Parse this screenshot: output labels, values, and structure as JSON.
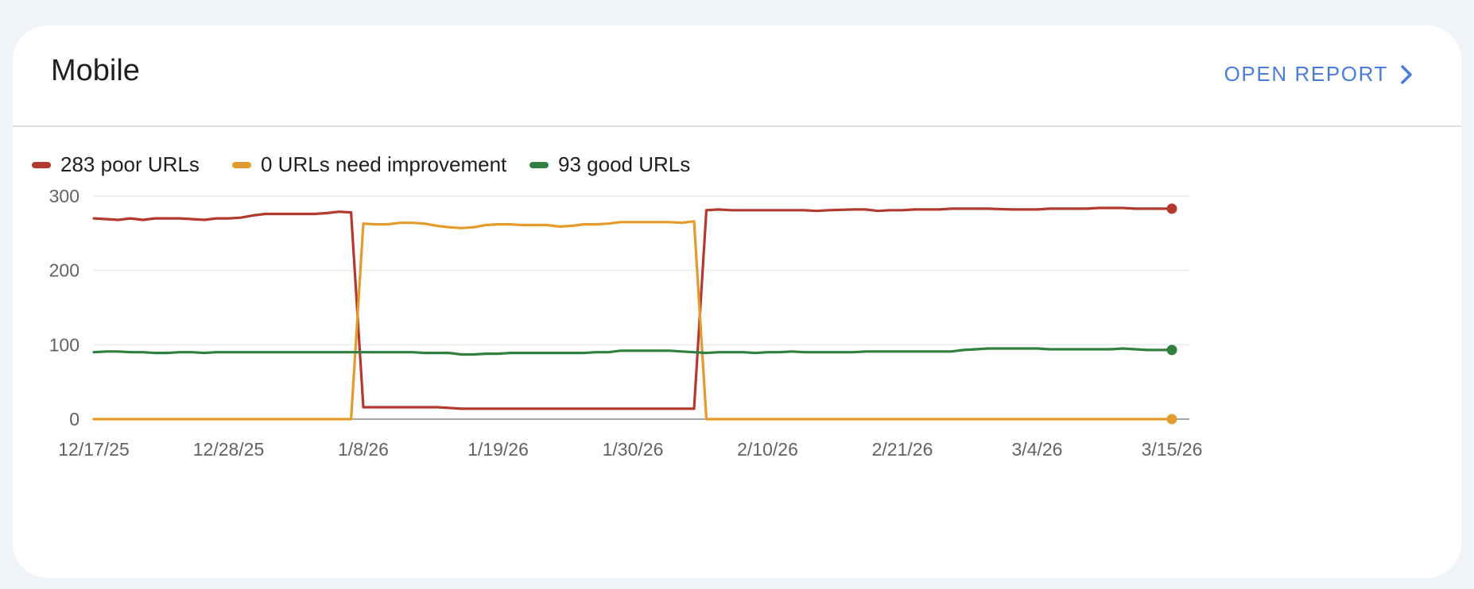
{
  "card": {
    "title": "Mobile",
    "open_report_label": "OPEN REPORT",
    "open_report_icon": "chevron-right-icon",
    "accent_color": "#4a7ddb"
  },
  "legend": [
    {
      "label": "283 poor URLs",
      "color": "#b3392e"
    },
    {
      "label": "0 URLs need improvement",
      "color": "#e59a2c"
    },
    {
      "label": "93 good URLs",
      "color": "#31803f"
    }
  ],
  "chart_data": {
    "type": "line",
    "ylim": [
      0,
      300
    ],
    "yticks": [
      0,
      100,
      200,
      300
    ],
    "xlim": [
      "12/17/25",
      "3/15/26"
    ],
    "xticks": [
      "12/17/25",
      "12/28/25",
      "1/8/26",
      "1/19/26",
      "1/30/26",
      "2/10/26",
      "2/21/26",
      "3/4/26",
      "3/15/26"
    ],
    "grid": true,
    "legend_position": "top-left",
    "series": [
      {
        "name": "283 poor URLs",
        "color": "#b3392e",
        "points": [
          [
            "12/17/25",
            270
          ],
          [
            "12/18/25",
            269
          ],
          [
            "12/19/25",
            268
          ],
          [
            "12/20/25",
            270
          ],
          [
            "12/21/25",
            268
          ],
          [
            "12/22/25",
            270
          ],
          [
            "12/23/25",
            270
          ],
          [
            "12/24/25",
            270
          ],
          [
            "12/25/25",
            269
          ],
          [
            "12/26/25",
            268
          ],
          [
            "12/27/25",
            270
          ],
          [
            "12/28/25",
            270
          ],
          [
            "12/29/25",
            271
          ],
          [
            "12/30/25",
            274
          ],
          [
            "12/31/25",
            276
          ],
          [
            "1/1/26",
            276
          ],
          [
            "1/2/26",
            276
          ],
          [
            "1/3/26",
            276
          ],
          [
            "1/4/26",
            276
          ],
          [
            "1/5/26",
            277
          ],
          [
            "1/6/26",
            279
          ],
          [
            "1/7/26",
            278
          ],
          [
            "1/8/26",
            16
          ],
          [
            "1/9/26",
            16
          ],
          [
            "1/10/26",
            16
          ],
          [
            "1/14/26",
            16
          ],
          [
            "1/15/26",
            15
          ],
          [
            "1/16/26",
            14
          ],
          [
            "1/20/26",
            14
          ],
          [
            "1/25/26",
            14
          ],
          [
            "2/1/26",
            14
          ],
          [
            "2/4/26",
            14
          ],
          [
            "2/5/26",
            281
          ],
          [
            "2/6/26",
            282
          ],
          [
            "2/7/26",
            281
          ],
          [
            "2/10/26",
            281
          ],
          [
            "2/13/26",
            281
          ],
          [
            "2/14/26",
            280
          ],
          [
            "2/15/26",
            281
          ],
          [
            "2/17/26",
            282
          ],
          [
            "2/18/26",
            282
          ],
          [
            "2/19/26",
            280
          ],
          [
            "2/20/26",
            281
          ],
          [
            "2/21/26",
            281
          ],
          [
            "2/22/26",
            282
          ],
          [
            "2/24/26",
            282
          ],
          [
            "2/25/26",
            283
          ],
          [
            "2/28/26",
            283
          ],
          [
            "3/2/26",
            282
          ],
          [
            "3/4/26",
            282
          ],
          [
            "3/5/26",
            283
          ],
          [
            "3/8/26",
            283
          ],
          [
            "3/9/26",
            284
          ],
          [
            "3/11/26",
            284
          ],
          [
            "3/12/26",
            283
          ],
          [
            "3/15/26",
            283
          ]
        ]
      },
      {
        "name": "0 URLs need improvement",
        "color": "#e59a2c",
        "points": [
          [
            "12/17/25",
            0
          ],
          [
            "1/7/26",
            0
          ],
          [
            "1/8/26",
            263
          ],
          [
            "1/9/26",
            262
          ],
          [
            "1/10/26",
            262
          ],
          [
            "1/11/26",
            264
          ],
          [
            "1/12/26",
            264
          ],
          [
            "1/13/26",
            263
          ],
          [
            "1/14/26",
            260
          ],
          [
            "1/15/26",
            258
          ],
          [
            "1/16/26",
            257
          ],
          [
            "1/17/26",
            258
          ],
          [
            "1/18/26",
            261
          ],
          [
            "1/19/26",
            262
          ],
          [
            "1/20/26",
            262
          ],
          [
            "1/21/26",
            261
          ],
          [
            "1/22/26",
            261
          ],
          [
            "1/23/26",
            261
          ],
          [
            "1/24/26",
            259
          ],
          [
            "1/25/26",
            260
          ],
          [
            "1/26/26",
            262
          ],
          [
            "1/27/26",
            262
          ],
          [
            "1/28/26",
            263
          ],
          [
            "1/29/26",
            265
          ],
          [
            "1/30/26",
            265
          ],
          [
            "1/31/26",
            265
          ],
          [
            "2/1/26",
            265
          ],
          [
            "2/2/26",
            265
          ],
          [
            "2/3/26",
            264
          ],
          [
            "2/4/26",
            266
          ],
          [
            "2/5/26",
            0
          ],
          [
            "3/15/26",
            0
          ]
        ]
      },
      {
        "name": "93 good URLs",
        "color": "#31803f",
        "points": [
          [
            "12/17/25",
            90
          ],
          [
            "12/18/25",
            91
          ],
          [
            "12/19/25",
            91
          ],
          [
            "12/20/25",
            90
          ],
          [
            "12/21/25",
            90
          ],
          [
            "12/22/25",
            89
          ],
          [
            "12/23/25",
            89
          ],
          [
            "12/24/25",
            90
          ],
          [
            "12/25/25",
            90
          ],
          [
            "12/26/25",
            89
          ],
          [
            "12/27/25",
            90
          ],
          [
            "1/5/26",
            90
          ],
          [
            "1/12/26",
            90
          ],
          [
            "1/13/26",
            89
          ],
          [
            "1/15/26",
            89
          ],
          [
            "1/16/26",
            87
          ],
          [
            "1/17/26",
            87
          ],
          [
            "1/18/26",
            88
          ],
          [
            "1/19/26",
            88
          ],
          [
            "1/20/26",
            89
          ],
          [
            "1/26/26",
            89
          ],
          [
            "1/27/26",
            90
          ],
          [
            "1/28/26",
            90
          ],
          [
            "1/29/26",
            92
          ],
          [
            "1/30/26",
            92
          ],
          [
            "2/2/26",
            92
          ],
          [
            "2/3/26",
            91
          ],
          [
            "2/4/26",
            90
          ],
          [
            "2/5/26",
            89
          ],
          [
            "2/6/26",
            90
          ],
          [
            "2/8/26",
            90
          ],
          [
            "2/9/26",
            89
          ],
          [
            "2/10/26",
            90
          ],
          [
            "2/11/26",
            90
          ],
          [
            "2/12/26",
            91
          ],
          [
            "2/13/26",
            90
          ],
          [
            "2/17/26",
            90
          ],
          [
            "2/18/26",
            91
          ],
          [
            "2/25/26",
            91
          ],
          [
            "2/26/26",
            93
          ],
          [
            "2/27/26",
            94
          ],
          [
            "2/28/26",
            95
          ],
          [
            "3/4/26",
            95
          ],
          [
            "3/5/26",
            94
          ],
          [
            "3/10/26",
            94
          ],
          [
            "3/11/26",
            95
          ],
          [
            "3/12/26",
            94
          ],
          [
            "3/13/26",
            93
          ],
          [
            "3/15/26",
            93
          ]
        ]
      }
    ]
  }
}
